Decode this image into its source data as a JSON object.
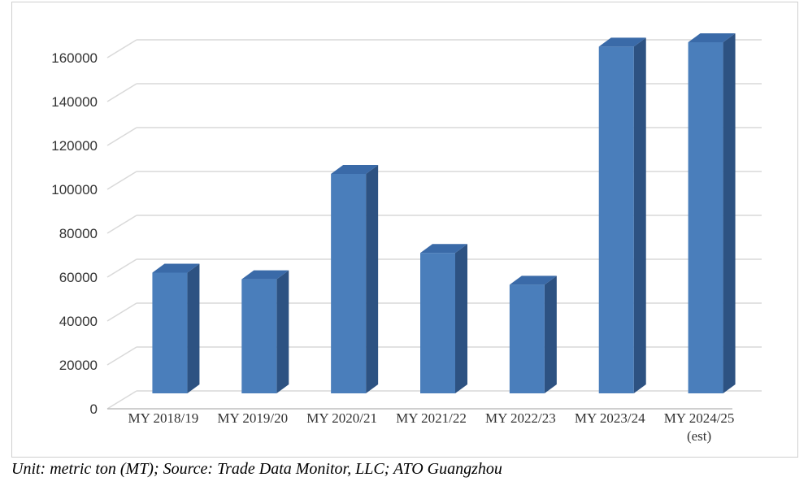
{
  "chart_data": {
    "type": "bar",
    "style": "3d-column",
    "categories": [
      "MY 2018/19",
      "MY 2019/20",
      "MY 2020/21",
      "MY 2021/22",
      "MY 2022/23",
      "MY 2023/24",
      "MY 2024/25"
    ],
    "category_notes": [
      "",
      "",
      "",
      "",
      "",
      "",
      "(est)"
    ],
    "values": [
      55000,
      52000,
      100000,
      64000,
      49500,
      158000,
      160000
    ],
    "ylim": [
      0,
      160000
    ],
    "yticks": [
      "0",
      "20000",
      "40000",
      "60000",
      "80000",
      "100000",
      "120000",
      "140000",
      "160000"
    ],
    "ytick_values": [
      0,
      20000,
      40000,
      60000,
      80000,
      100000,
      120000,
      140000,
      160000
    ],
    "grid": true,
    "title": "",
    "xlabel": "",
    "ylabel": "",
    "colors": {
      "bar_front": "#4a7ebb",
      "bar_side": "#2d5282",
      "bar_top": "#3a6aa8",
      "grid": "#d9d9d9",
      "axis": "#bfbfbf"
    }
  },
  "caption": "Unit: metric ton (MT); Source: Trade Data Monitor, LLC; ATO Guangzhou"
}
